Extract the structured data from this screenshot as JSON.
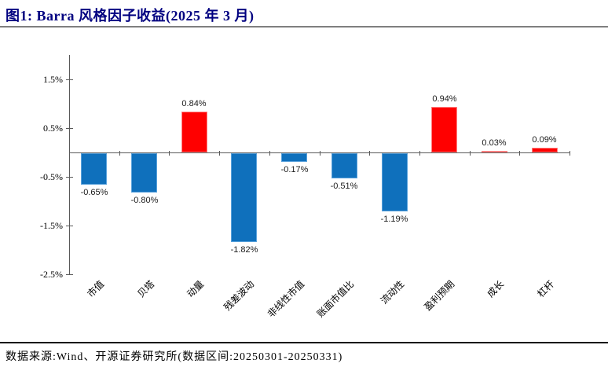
{
  "header": {
    "title": "图1: Barra 风格因子收益(2025 年 3 月)"
  },
  "footer": {
    "source": "数据来源:Wind、开源证券研究所(数据区间:20250301-20250331)"
  },
  "colors": {
    "title": "#000080",
    "title_rule": "#7f7f7f",
    "footer_rule": "#111111",
    "axis": "#595959",
    "positive_bar": "#ff0000",
    "negative_bar": "#0f70bc"
  },
  "chart_data": {
    "type": "bar",
    "title": "",
    "xlabel": "",
    "ylabel": "",
    "categories": [
      "市值",
      "贝塔",
      "动量",
      "残差波动",
      "非线性市值",
      "账面市值比",
      "流动性",
      "盈利预期",
      "成长",
      "杠杆"
    ],
    "values": [
      -0.65,
      -0.8,
      0.84,
      -1.82,
      -0.17,
      -0.51,
      -1.19,
      0.94,
      0.03,
      0.09
    ],
    "value_labels": [
      "-0.65%",
      "-0.80%",
      "0.84%",
      "-1.82%",
      "-0.17%",
      "-0.51%",
      "-1.19%",
      "0.94%",
      "0.03%",
      "0.09%"
    ],
    "unit": "%",
    "ylim": [
      -2.5,
      2.0
    ],
    "yticks": [
      {
        "value": 1.5,
        "label": "1.5%"
      },
      {
        "value": 0.5,
        "label": "0.5%"
      },
      {
        "value": -0.5,
        "label": "-0.5%"
      },
      {
        "value": -1.5,
        "label": "-1.5%"
      },
      {
        "value": -2.5,
        "label": "-2.5%"
      }
    ],
    "grid": false,
    "legend": "none",
    "colors": {
      "positive": "#ff0000",
      "negative": "#0f70bc"
    }
  }
}
